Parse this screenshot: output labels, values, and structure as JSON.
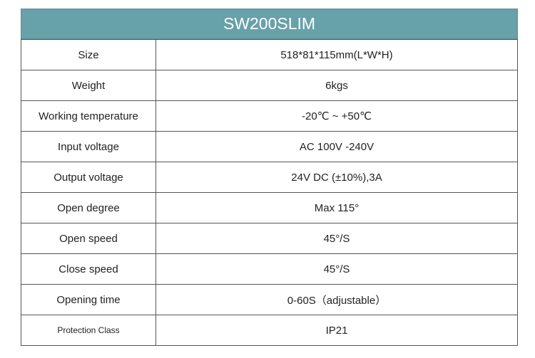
{
  "header": {
    "title": "SW200SLIM"
  },
  "table": {
    "rows": [
      [
        "Size",
        "518*81*115mm(L*W*H)"
      ],
      [
        "Weight",
        "6kgs"
      ],
      [
        "Working temperature",
        "-20℃ ~ +50℃"
      ],
      [
        "Input voltage",
        "AC 100V -240V"
      ],
      [
        "Output voltage",
        "24V DC (±10%),3A"
      ],
      [
        "Open degree",
        "Max 115°"
      ],
      [
        "Open speed",
        "45°/S"
      ],
      [
        "Close speed",
        "45°/S"
      ],
      [
        "Opening time",
        "0-60S（adjustable）"
      ],
      [
        "Protection Class",
        "IP21"
      ]
    ]
  }
}
